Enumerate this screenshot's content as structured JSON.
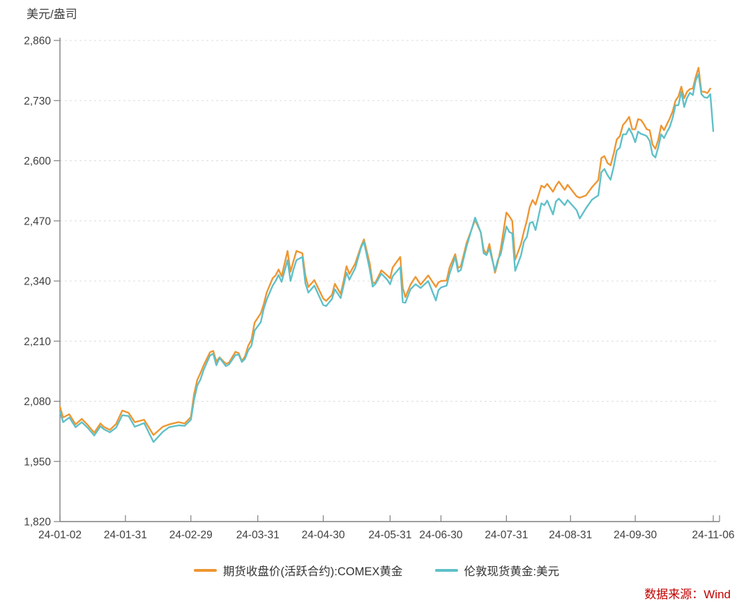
{
  "header": {
    "unit_label": "美元/盎司"
  },
  "source_note": "数据来源：Wind",
  "legend": {
    "items": [
      {
        "label": "期货收盘价(活跃合约):COMEX黄金",
        "color": "#EE9632"
      },
      {
        "label": "伦敦现货黄金:美元",
        "color": "#5FC0C8"
      }
    ]
  },
  "colors": {
    "axis": "#7f7f7f",
    "grid": "#dcdcdc",
    "tick_text": "#3f3f3f",
    "source_red": "#c00000",
    "futures_orange": "#EE9632",
    "spot_teal": "#5FC0C8"
  },
  "chart_data": {
    "type": "line",
    "title": "",
    "xlabel": "",
    "ylabel": "美元/盎司",
    "ylim": [
      1820,
      2860
    ],
    "y_tick_step": 130,
    "y_ticks": [
      1820,
      1950,
      2080,
      2210,
      2340,
      2470,
      2600,
      2730,
      2860
    ],
    "grid": true,
    "legend_position": "bottom",
    "x_tick_labels": [
      "24-01-02",
      "24-01-31",
      "24-02-29",
      "24-03-31",
      "24-04-30",
      "24-05-31",
      "24-06-30",
      "24-07-31",
      "24-08-31",
      "24-09-30",
      "24-11-06"
    ],
    "x_anchors": [
      {
        "d": "01-02",
        "frac": 0.0
      },
      {
        "d": "01-31",
        "frac": 0.1002
      },
      {
        "d": "02-29",
        "frac": 0.2004
      },
      {
        "d": "03-31",
        "frac": 0.3028
      },
      {
        "d": "04-30",
        "frac": 0.403
      },
      {
        "d": "05-31",
        "frac": 0.5053
      },
      {
        "d": "06-30",
        "frac": 0.5832
      },
      {
        "d": "07-31",
        "frac": 0.6834
      },
      {
        "d": "08-31",
        "frac": 0.7815
      },
      {
        "d": "09-30",
        "frac": 0.8806
      },
      {
        "d": "10-31",
        "frac": 0.9819
      },
      {
        "d": "11-06",
        "frac": 1.0
      }
    ],
    "dates": [
      "01-02",
      "01-03",
      "01-05",
      "01-09",
      "01-11",
      "01-15",
      "01-17",
      "01-19",
      "01-22",
      "01-24",
      "01-26",
      "01-30",
      "02-01",
      "02-05",
      "02-08",
      "02-13",
      "02-16",
      "02-20",
      "02-23",
      "02-27",
      "02-29",
      "03-01",
      "03-04",
      "03-05",
      "03-06",
      "03-08",
      "03-11",
      "03-12",
      "03-13",
      "03-15",
      "03-18",
      "03-20",
      "03-21",
      "03-22",
      "03-25",
      "03-26",
      "03-27",
      "03-28",
      "04-01",
      "04-02",
      "04-03",
      "04-05",
      "04-08",
      "04-09",
      "04-10",
      "04-12",
      "04-15",
      "04-16",
      "04-17",
      "04-19",
      "04-22",
      "04-23",
      "04-25",
      "04-30",
      "05-01",
      "05-03",
      "05-06",
      "05-08",
      "05-09",
      "05-10",
      "05-13",
      "05-15",
      "05-17",
      "05-20",
      "05-22",
      "05-23",
      "05-24",
      "05-28",
      "05-30",
      "05-31",
      "06-03",
      "06-06",
      "06-07",
      "06-10",
      "06-12",
      "06-14",
      "06-18",
      "06-21",
      "06-26",
      "06-27",
      "06-28",
      "07-02",
      "07-03",
      "07-05",
      "07-08",
      "07-09",
      "07-11",
      "07-16",
      "07-18",
      "07-19",
      "07-22",
      "07-23",
      "07-25",
      "07-26",
      "07-29",
      "07-31",
      "08-01",
      "08-02",
      "08-05",
      "08-07",
      "08-08",
      "08-09",
      "08-12",
      "08-13",
      "08-14",
      "08-16",
      "08-19",
      "08-20",
      "08-22",
      "08-23",
      "08-26",
      "08-28",
      "08-29",
      "09-03",
      "09-04",
      "09-06",
      "09-10",
      "09-12",
      "09-13",
      "09-16",
      "09-17",
      "09-18",
      "09-19",
      "09-20",
      "09-23",
      "09-24",
      "09-25",
      "09-26",
      "09-27",
      "09-30",
      "10-01",
      "10-02",
      "10-03",
      "10-04",
      "10-07",
      "10-08",
      "10-09",
      "10-10",
      "10-11",
      "10-14",
      "10-15",
      "10-16",
      "10-17",
      "10-18",
      "10-21",
      "10-22",
      "10-23",
      "10-24",
      "10-25",
      "10-28",
      "10-29",
      "10-30",
      "10-31",
      "11-01",
      "11-04",
      "11-05",
      "11-06"
    ],
    "series": [
      {
        "name": "期货收盘价(活跃合约):COMEX黄金",
        "color": "#EE9632",
        "values": [
          2068,
          2045,
          2052,
          2030,
          2042,
          2028,
          2012,
          2032,
          2025,
          2018,
          2031,
          2060,
          2055,
          2035,
          2040,
          2007,
          2025,
          2030,
          2035,
          2032,
          2046,
          2095,
          2126,
          2141,
          2158,
          2186,
          2189,
          2166,
          2175,
          2161,
          2164,
          2187,
          2184,
          2167,
          2177,
          2200,
          2213,
          2250,
          2270,
          2290,
          2315,
          2346,
          2352,
          2365,
          2350,
          2405,
          2360,
          2383,
          2405,
          2400,
          2352,
          2327,
          2342,
          2302,
          2297,
          2310,
          2334,
          2312,
          2340,
          2372,
          2355,
          2378,
          2415,
          2430,
          2378,
          2335,
          2337,
          2363,
          2352,
          2346,
          2369,
          2392,
          2325,
          2305,
          2332,
          2349,
          2332,
          2352,
          2327,
          2337,
          2340,
          2341,
          2369,
          2398,
          2368,
          2372,
          2422,
          2472,
          2445,
          2408,
          2398,
          2420,
          2358,
          2381,
          2410,
          2488,
          2480,
          2470,
          2386,
          2420,
          2447,
          2470,
          2500,
          2515,
          2505,
          2546,
          2542,
          2550,
          2533,
          2546,
          2555,
          2537,
          2548,
          2523,
          2520,
          2525,
          2543,
          2558,
          2606,
          2610,
          2595,
          2590,
          2615,
          2646,
          2653,
          2677,
          2685,
          2695,
          2668,
          2668,
          2690,
          2688,
          2679,
          2668,
          2666,
          2635,
          2626,
          2645,
          2676,
          2666,
          2679,
          2691,
          2707,
          2730,
          2739,
          2760,
          2735,
          2749,
          2755,
          2756,
          2781,
          2801,
          2749,
          2749,
          2746,
          2756,
          null
        ]
      },
      {
        "name": "伦敦现货黄金:美元",
        "color": "#5FC0C8",
        "values": [
          2058,
          2035,
          2045,
          2024,
          2035,
          2022,
          2006,
          2026,
          2020,
          2013,
          2023,
          2050,
          2048,
          2025,
          2033,
          1992,
          2014,
          2024,
          2028,
          2027,
          2040,
          2083,
          2114,
          2127,
          2148,
          2179,
          2183,
          2158,
          2174,
          2156,
          2160,
          2180,
          2181,
          2165,
          2172,
          2190,
          2200,
          2233,
          2251,
          2280,
          2300,
          2330,
          2340,
          2353,
          2338,
          2385,
          2340,
          2365,
          2385,
          2392,
          2335,
          2315,
          2330,
          2288,
          2286,
          2301,
          2322,
          2303,
          2330,
          2358,
          2343,
          2368,
          2412,
          2425,
          2365,
          2328,
          2334,
          2356,
          2343,
          2333,
          2350,
          2370,
          2294,
          2293,
          2322,
          2333,
          2325,
          2340,
          2298,
          2320,
          2326,
          2330,
          2355,
          2392,
          2360,
          2364,
          2415,
          2477,
          2445,
          2400,
          2396,
          2410,
          2362,
          2386,
          2398,
          2458,
          2446,
          2443,
          2362,
          2395,
          2425,
          2435,
          2465,
          2468,
          2450,
          2508,
          2504,
          2514,
          2484,
          2512,
          2518,
          2504,
          2515,
          2493,
          2475,
          2497,
          2516,
          2525,
          2575,
          2582,
          2569,
          2559,
          2587,
          2622,
          2628,
          2657,
          2657,
          2670,
          2658,
          2640,
          2663,
          2658,
          2656,
          2653,
          2643,
          2613,
          2607,
          2629,
          2657,
          2649,
          2662,
          2673,
          2693,
          2720,
          2720,
          2749,
          2716,
          2736,
          2747,
          2742,
          2774,
          2787,
          2744,
          2737,
          2736,
          2744,
          2664
        ]
      }
    ]
  }
}
